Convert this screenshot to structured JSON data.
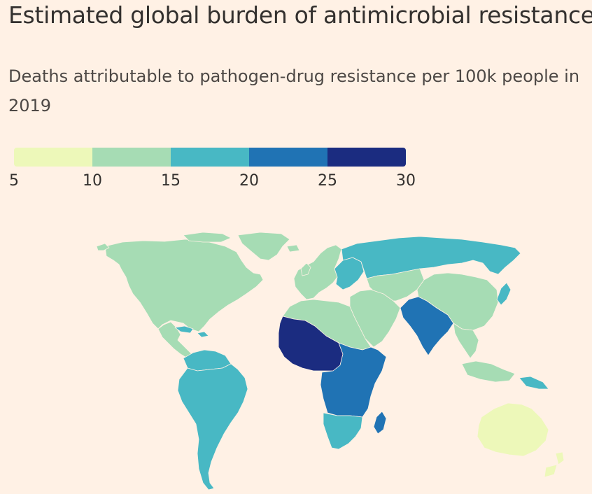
{
  "title": "Estimated global burden of antimicrobial resistance",
  "subtitle": "Deaths attributable to pathogen-drug resistance per 100k people in 2019",
  "colors": {
    "background": "#fff1e5",
    "bin_5_10": "#edf8b9",
    "bin_10_15": "#a6dcb4",
    "bin_15_20": "#48b8c4",
    "bin_20_25": "#2073b4",
    "bin_25_30": "#1b2c80"
  },
  "chart_data": {
    "type": "choropleth",
    "title": "Estimated global burden of antimicrobial resistance",
    "subtitle": "Deaths attributable to pathogen-drug resistance per 100k people in 2019",
    "legend": {
      "breaks": [
        5,
        10,
        15,
        20,
        25,
        30
      ],
      "tick_labels": [
        "5",
        "10",
        "15",
        "20",
        "25",
        "30"
      ],
      "colors": [
        "#edf8b9",
        "#a6dcb4",
        "#48b8c4",
        "#2073b4",
        "#1b2c80"
      ]
    },
    "regions": [
      {
        "name": "North America",
        "bin": "10-15"
      },
      {
        "name": "Greenland",
        "bin": "10-15"
      },
      {
        "name": "Central America",
        "bin": "10-15"
      },
      {
        "name": "Caribbean",
        "bin": "15-20"
      },
      {
        "name": "South America",
        "bin": "15-20"
      },
      {
        "name": "Western Europe",
        "bin": "10-15"
      },
      {
        "name": "Eastern Europe",
        "bin": "15-20"
      },
      {
        "name": "Russia",
        "bin": "15-20"
      },
      {
        "name": "Central Asia",
        "bin": "10-15"
      },
      {
        "name": "Middle East",
        "bin": "10-15"
      },
      {
        "name": "North Africa",
        "bin": "10-15"
      },
      {
        "name": "West and Central Africa",
        "bin": "25-30"
      },
      {
        "name": "East and Central Africa",
        "bin": "20-25"
      },
      {
        "name": "Southern Africa",
        "bin": "15-20"
      },
      {
        "name": "Madagascar",
        "bin": "20-25"
      },
      {
        "name": "South Asia",
        "bin": "20-25"
      },
      {
        "name": "East Asia",
        "bin": "10-15"
      },
      {
        "name": "Japan",
        "bin": "15-20"
      },
      {
        "name": "Southeast Asia",
        "bin": "10-15"
      },
      {
        "name": "Papua New Guinea",
        "bin": "15-20"
      },
      {
        "name": "Australia",
        "bin": "5-10"
      },
      {
        "name": "New Zealand",
        "bin": "5-10"
      }
    ]
  }
}
